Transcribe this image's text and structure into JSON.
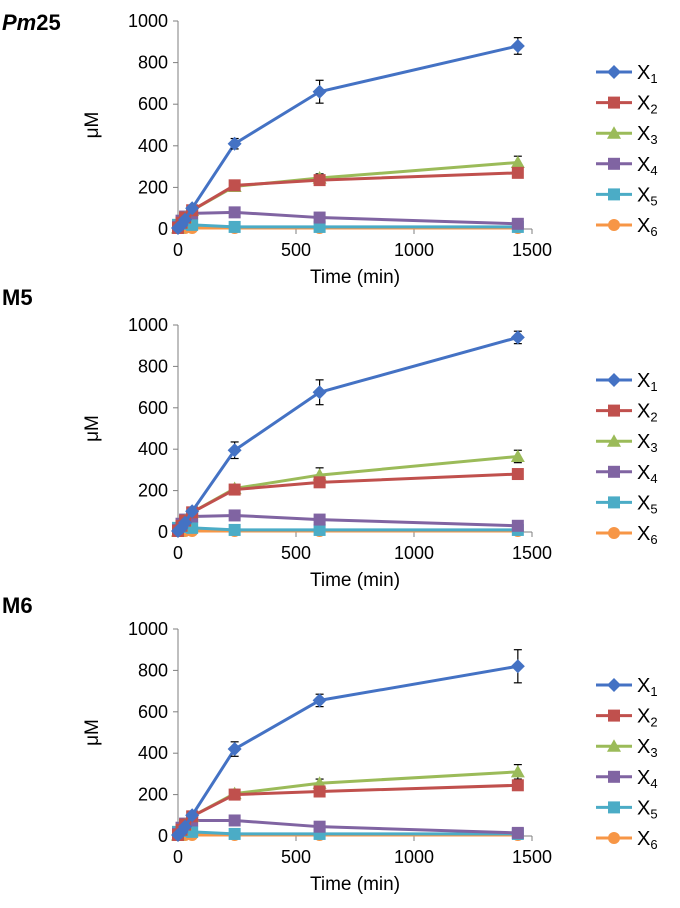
{
  "chart_data": [
    {
      "type": "line",
      "panel_label": "Pm25",
      "panel_label_parts": [
        {
          "text": "Pm",
          "italic": true
        },
        {
          "text": "25",
          "italic": false
        }
      ],
      "xlabel": "Time (min)",
      "ylabel": "μM",
      "xlim": [
        0,
        1500
      ],
      "ylim": [
        0,
        1000
      ],
      "xticks": [
        0,
        500,
        1000,
        1500
      ],
      "yticks": [
        0,
        200,
        400,
        600,
        800,
        1000
      ],
      "x": [
        0,
        15,
        30,
        60,
        240,
        600,
        1440
      ],
      "series": [
        {
          "name": "X",
          "sub": "1",
          "color": "#4472C4",
          "marker": "diamond",
          "values": [
            5,
            20,
            45,
            100,
            410,
            660,
            880
          ],
          "errors": [
            0,
            0,
            0,
            0,
            25,
            55,
            40
          ]
        },
        {
          "name": "X",
          "sub": "2",
          "color": "#C0504D",
          "marker": "square",
          "values": [
            5,
            30,
            55,
            90,
            210,
            235,
            270
          ],
          "errors": [
            0,
            0,
            0,
            0,
            10,
            15,
            15
          ]
        },
        {
          "name": "X",
          "sub": "3",
          "color": "#9BBB59",
          "marker": "triangle",
          "values": [
            5,
            30,
            55,
            90,
            205,
            245,
            320
          ],
          "errors": [
            0,
            0,
            0,
            0,
            10,
            20,
            30
          ]
        },
        {
          "name": "X",
          "sub": "4",
          "color": "#8064A2",
          "marker": "square",
          "values": [
            10,
            40,
            60,
            75,
            80,
            55,
            25
          ],
          "errors": [
            0,
            0,
            0,
            0,
            5,
            5,
            5
          ]
        },
        {
          "name": "X",
          "sub": "5",
          "color": "#4BACC6",
          "marker": "square",
          "values": [
            20,
            25,
            25,
            20,
            10,
            10,
            10
          ],
          "errors": [
            0,
            0,
            0,
            0,
            0,
            0,
            0
          ]
        },
        {
          "name": "X",
          "sub": "6",
          "color": "#F79646",
          "marker": "circle",
          "values": [
            5,
            5,
            5,
            5,
            5,
            5,
            5
          ],
          "errors": [
            0,
            0,
            0,
            0,
            0,
            0,
            0
          ]
        }
      ]
    },
    {
      "type": "line",
      "panel_label": "M5",
      "panel_label_parts": [
        {
          "text": "M5",
          "italic": false
        }
      ],
      "xlabel": "Time (min)",
      "ylabel": "μM",
      "xlim": [
        0,
        1500
      ],
      "ylim": [
        0,
        1000
      ],
      "xticks": [
        0,
        500,
        1000,
        1500
      ],
      "yticks": [
        0,
        200,
        400,
        600,
        800,
        1000
      ],
      "x": [
        0,
        15,
        30,
        60,
        240,
        600,
        1440
      ],
      "series": [
        {
          "name": "X",
          "sub": "1",
          "color": "#4472C4",
          "marker": "diamond",
          "values": [
            5,
            20,
            45,
            100,
            395,
            675,
            940
          ],
          "errors": [
            0,
            0,
            0,
            0,
            40,
            60,
            30
          ]
        },
        {
          "name": "X",
          "sub": "2",
          "color": "#C0504D",
          "marker": "square",
          "values": [
            5,
            30,
            55,
            95,
            205,
            240,
            280
          ],
          "errors": [
            0,
            0,
            0,
            0,
            10,
            15,
            15
          ]
        },
        {
          "name": "X",
          "sub": "3",
          "color": "#9BBB59",
          "marker": "triangle",
          "values": [
            5,
            30,
            55,
            95,
            210,
            275,
            365
          ],
          "errors": [
            0,
            0,
            0,
            0,
            10,
            35,
            30
          ]
        },
        {
          "name": "X",
          "sub": "4",
          "color": "#8064A2",
          "marker": "square",
          "values": [
            10,
            40,
            60,
            75,
            80,
            60,
            30
          ],
          "errors": [
            0,
            0,
            0,
            0,
            5,
            5,
            5
          ]
        },
        {
          "name": "X",
          "sub": "5",
          "color": "#4BACC6",
          "marker": "square",
          "values": [
            20,
            25,
            25,
            20,
            10,
            10,
            10
          ],
          "errors": [
            0,
            0,
            0,
            0,
            0,
            0,
            0
          ]
        },
        {
          "name": "X",
          "sub": "6",
          "color": "#F79646",
          "marker": "circle",
          "values": [
            5,
            5,
            5,
            5,
            5,
            5,
            5
          ],
          "errors": [
            0,
            0,
            0,
            0,
            0,
            0,
            0
          ]
        }
      ]
    },
    {
      "type": "line",
      "panel_label": "M6",
      "panel_label_parts": [
        {
          "text": "M6",
          "italic": false
        }
      ],
      "xlabel": "Time (min)",
      "ylabel": "μM",
      "xlim": [
        0,
        1500
      ],
      "ylim": [
        0,
        1000
      ],
      "xticks": [
        0,
        500,
        1000,
        1500
      ],
      "yticks": [
        0,
        200,
        400,
        600,
        800,
        1000
      ],
      "x": [
        0,
        15,
        30,
        60,
        240,
        600,
        1440
      ],
      "series": [
        {
          "name": "X",
          "sub": "1",
          "color": "#4472C4",
          "marker": "diamond",
          "values": [
            5,
            20,
            45,
            100,
            420,
            655,
            820
          ],
          "errors": [
            0,
            0,
            0,
            0,
            35,
            30,
            80
          ]
        },
        {
          "name": "X",
          "sub": "2",
          "color": "#C0504D",
          "marker": "square",
          "values": [
            5,
            30,
            55,
            95,
            200,
            215,
            245
          ],
          "errors": [
            0,
            0,
            0,
            0,
            10,
            15,
            15
          ]
        },
        {
          "name": "X",
          "sub": "3",
          "color": "#9BBB59",
          "marker": "triangle",
          "values": [
            5,
            30,
            55,
            95,
            205,
            255,
            310
          ],
          "errors": [
            0,
            0,
            0,
            0,
            20,
            20,
            35
          ]
        },
        {
          "name": "X",
          "sub": "4",
          "color": "#8064A2",
          "marker": "square",
          "values": [
            10,
            40,
            60,
            75,
            75,
            45,
            15
          ],
          "errors": [
            0,
            0,
            0,
            0,
            5,
            5,
            5
          ]
        },
        {
          "name": "X",
          "sub": "5",
          "color": "#4BACC6",
          "marker": "square",
          "values": [
            20,
            25,
            25,
            20,
            10,
            10,
            10
          ],
          "errors": [
            0,
            0,
            0,
            0,
            0,
            0,
            0
          ]
        },
        {
          "name": "X",
          "sub": "6",
          "color": "#F79646",
          "marker": "circle",
          "values": [
            5,
            5,
            5,
            5,
            5,
            5,
            5
          ],
          "errors": [
            0,
            0,
            0,
            0,
            0,
            0,
            0
          ]
        }
      ]
    }
  ]
}
